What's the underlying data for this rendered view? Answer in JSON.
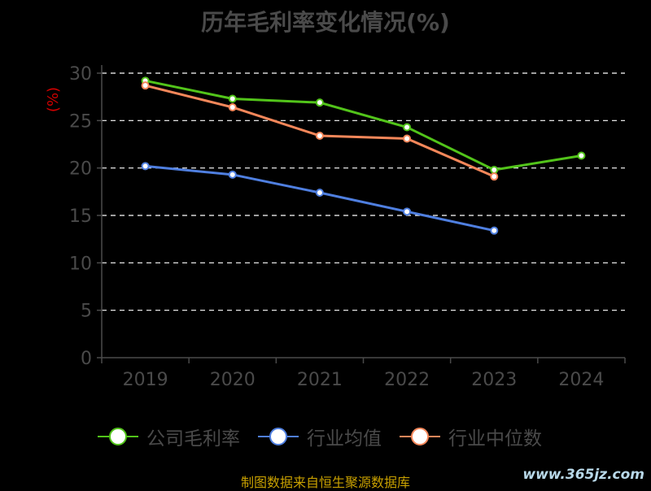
{
  "colors": {
    "company": "#52c41a",
    "industry_avg": "#4f7fe0",
    "industry_median": "#f5875a",
    "axis": "#4a4a4a",
    "grid": "#ffffff",
    "ylabel": "#d00000",
    "source": "#c8a000"
  },
  "chart_data": {
    "type": "line",
    "title": "历年毛利率变化情况(%)",
    "ylabel": "(%)",
    "xlabel": "",
    "categories": [
      "2019",
      "2020",
      "2021",
      "2022",
      "2023",
      "2024"
    ],
    "ylim": [
      0,
      30
    ],
    "yticks": [
      0,
      5,
      10,
      15,
      20,
      25,
      30
    ],
    "grid": true,
    "legend_position": "bottom",
    "series": [
      {
        "name": "公司毛利率",
        "color": "#52c41a",
        "values": [
          29.2,
          27.3,
          26.9,
          24.3,
          19.8,
          21.3
        ]
      },
      {
        "name": "行业均值",
        "color": "#4f7fe0",
        "values": [
          20.2,
          19.3,
          17.4,
          15.4,
          13.4,
          null
        ]
      },
      {
        "name": "行业中位数",
        "color": "#f5875a",
        "values": [
          28.7,
          26.4,
          23.4,
          23.1,
          19.1,
          null
        ]
      }
    ]
  },
  "footer": {
    "source": "制图数据来自恒生聚源数据库",
    "watermark": "www.365jz.com"
  }
}
